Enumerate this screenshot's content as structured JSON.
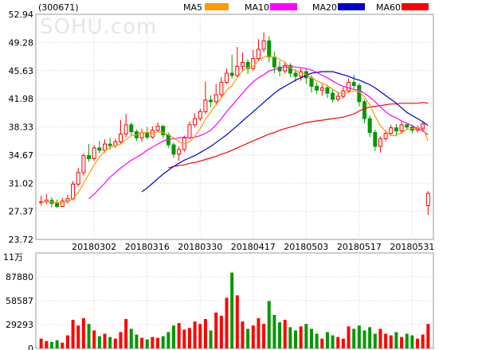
{
  "header": {
    "code": "(300671)",
    "watermark": "SOHU.com"
  },
  "chart_data": [
    {
      "type": "candlestick",
      "ylim": [
        23.72,
        52.94
      ],
      "yticks": [
        "52.94",
        "49.28",
        "45.63",
        "41.98",
        "38.33",
        "34.67",
        "31.02",
        "27.37",
        "23.72"
      ],
      "xticks": [
        "20180302",
        "20180316",
        "20180330",
        "20180417",
        "20180503",
        "20180517",
        "20180531"
      ],
      "xtick_index": [
        10,
        20,
        30,
        40,
        50,
        60,
        70
      ],
      "legend": [
        {
          "name": "MA5",
          "color": "#ff9900"
        },
        {
          "name": "MA10",
          "color": "#ff00ff"
        },
        {
          "name": "MA20",
          "color": "#0000cc"
        },
        {
          "name": "MA60",
          "color": "#ff0000"
        }
      ],
      "up_color": "#ff0000",
      "down_color": "#009900",
      "candles": [
        [
          28.5,
          28.6,
          29.4,
          28.1
        ],
        [
          28.6,
          28.8,
          29.6,
          28.3
        ],
        [
          28.8,
          28.4,
          29.2,
          27.9
        ],
        [
          28.4,
          28.0,
          28.9,
          27.8
        ],
        [
          28.0,
          28.7,
          29.1,
          27.9
        ],
        [
          28.7,
          29.0,
          29.5,
          28.4
        ],
        [
          29.0,
          30.9,
          31.3,
          28.8
        ],
        [
          30.9,
          32.4,
          33.0,
          30.6
        ],
        [
          32.4,
          34.6,
          34.9,
          32.0
        ],
        [
          34.6,
          34.2,
          36.1,
          33.8
        ],
        [
          34.2,
          35.6,
          36.0,
          33.9
        ],
        [
          35.6,
          35.3,
          36.5,
          34.9
        ],
        [
          35.3,
          36.1,
          36.7,
          35.0
        ],
        [
          36.1,
          35.9,
          36.9,
          35.4
        ],
        [
          35.9,
          36.4,
          36.8,
          35.6
        ],
        [
          36.4,
          37.4,
          39.2,
          36.1
        ],
        [
          37.4,
          38.6,
          40.0,
          37.0
        ],
        [
          38.6,
          37.7,
          38.9,
          37.2
        ],
        [
          37.7,
          36.9,
          38.0,
          36.5
        ],
        [
          36.9,
          37.6,
          38.1,
          36.4
        ],
        [
          37.6,
          37.0,
          38.3,
          36.7
        ],
        [
          37.0,
          37.9,
          38.4,
          36.8
        ],
        [
          37.9,
          38.4,
          38.9,
          37.6
        ],
        [
          38.4,
          37.3,
          38.6,
          36.9
        ],
        [
          37.3,
          36.0,
          37.6,
          35.6
        ],
        [
          36.0,
          34.8,
          36.3,
          34.3
        ],
        [
          34.8,
          35.4,
          35.8,
          33.9
        ],
        [
          35.4,
          36.9,
          37.2,
          35.1
        ],
        [
          36.9,
          38.6,
          39.0,
          36.7
        ],
        [
          38.6,
          39.4,
          40.1,
          38.3
        ],
        [
          39.4,
          40.3,
          40.7,
          39.1
        ],
        [
          40.3,
          41.8,
          44.2,
          40.0
        ],
        [
          41.8,
          41.6,
          42.4,
          40.9
        ],
        [
          41.6,
          42.5,
          43.9,
          41.3
        ],
        [
          42.5,
          44.1,
          44.8,
          42.1
        ],
        [
          44.1,
          45.3,
          45.9,
          43.9
        ],
        [
          45.3,
          45.0,
          47.7,
          44.6
        ],
        [
          45.0,
          46.2,
          48.7,
          44.8
        ],
        [
          46.2,
          46.7,
          48.0,
          45.6
        ],
        [
          46.7,
          45.9,
          47.1,
          45.2
        ],
        [
          45.9,
          47.2,
          48.3,
          45.6
        ],
        [
          47.2,
          48.4,
          49.7,
          46.9
        ],
        [
          48.4,
          49.5,
          50.6,
          48.0
        ],
        [
          49.5,
          47.4,
          50.1,
          46.7
        ],
        [
          47.4,
          46.1,
          48.1,
          45.3
        ],
        [
          46.1,
          45.6,
          46.9,
          44.9
        ],
        [
          45.6,
          46.3,
          46.8,
          45.2
        ],
        [
          46.3,
          45.3,
          46.6,
          44.8
        ],
        [
          45.3,
          44.9,
          45.8,
          44.2
        ],
        [
          44.9,
          45.5,
          46.0,
          44.3
        ],
        [
          45.5,
          44.7,
          45.9,
          43.9
        ],
        [
          44.7,
          43.6,
          45.0,
          42.8
        ],
        [
          43.6,
          43.1,
          44.1,
          42.6
        ],
        [
          43.1,
          43.4,
          43.9,
          42.4
        ],
        [
          43.4,
          42.7,
          43.8,
          42.1
        ],
        [
          42.7,
          41.9,
          43.3,
          41.5
        ],
        [
          41.9,
          42.3,
          42.9,
          41.6
        ],
        [
          42.3,
          43.0,
          43.5,
          42.0
        ],
        [
          43.0,
          44.1,
          44.6,
          42.8
        ],
        [
          44.1,
          43.7,
          45.1,
          43.3
        ],
        [
          43.7,
          41.6,
          44.0,
          41.0
        ],
        [
          41.6,
          39.4,
          41.9,
          38.8
        ],
        [
          39.4,
          37.6,
          39.8,
          37.0
        ],
        [
          37.6,
          35.8,
          38.0,
          35.2
        ],
        [
          35.8,
          36.8,
          37.1,
          35.0
        ],
        [
          36.8,
          37.5,
          37.9,
          36.5
        ],
        [
          37.5,
          38.2,
          38.6,
          37.3
        ],
        [
          38.2,
          37.8,
          38.7,
          37.1
        ],
        [
          37.8,
          38.6,
          39.0,
          37.4
        ],
        [
          38.6,
          38.3,
          38.8,
          37.9
        ],
        [
          38.3,
          37.9,
          38.6,
          37.5
        ],
        [
          37.9,
          38.1,
          38.5,
          37.6
        ],
        [
          38.1,
          38.7,
          39.0,
          37.8
        ],
        [
          28.1,
          29.7,
          30.0,
          26.9
        ]
      ],
      "ma5": [
        28.5,
        28.6,
        28.6,
        28.5,
        28.5,
        28.6,
        29.0,
        29.8,
        31.0,
        32.2,
        33.4,
        34.4,
        35.2,
        35.6,
        35.9,
        36.1,
        36.7,
        37.2,
        37.3,
        37.6,
        37.6,
        37.5,
        37.7,
        37.6,
        37.3,
        36.9,
        36.4,
        36.1,
        36.4,
        37.1,
        38.1,
        39.3,
        40.3,
        41.2,
        42.1,
        43.1,
        43.7,
        44.7,
        45.6,
        46.0,
        46.2,
        46.9,
        47.4,
        47.5,
        47.4,
        47.1,
        46.7,
        46.0,
        45.6,
        45.4,
        45.1,
        44.7,
        44.3,
        44.0,
        43.7,
        43.2,
        42.8,
        42.6,
        42.8,
        43.0,
        42.9,
        42.2,
        41.2,
        39.7,
        38.5,
        37.7,
        37.2,
        37.2,
        37.6,
        38.0,
        38.1,
        38.2,
        38.3,
        36.5
      ],
      "ma10": [
        null,
        null,
        null,
        null,
        null,
        null,
        null,
        null,
        null,
        29.0,
        29.6,
        30.3,
        31.0,
        31.8,
        32.4,
        33.0,
        33.5,
        34.0,
        34.4,
        34.8,
        35.3,
        35.7,
        36.1,
        36.5,
        36.7,
        36.8,
        36.9,
        37.0,
        36.9,
        37.0,
        37.2,
        37.5,
        37.9,
        38.6,
        39.4,
        40.3,
        41.1,
        41.9,
        42.7,
        43.5,
        44.2,
        44.7,
        45.1,
        45.6,
        45.8,
        46.0,
        46.1,
        46.1,
        46.1,
        46.0,
        45.9,
        45.7,
        45.4,
        45.0,
        44.7,
        44.3,
        43.9,
        43.6,
        43.4,
        43.2,
        43.1,
        42.7,
        42.2,
        41.6,
        40.9,
        40.3,
        39.8,
        39.5,
        39.1,
        38.8,
        38.5,
        38.1,
        37.8,
        37.3
      ],
      "ma20": [
        null,
        null,
        null,
        null,
        null,
        null,
        null,
        null,
        null,
        null,
        null,
        null,
        null,
        null,
        null,
        null,
        null,
        null,
        null,
        29.9,
        30.4,
        31.0,
        31.6,
        32.2,
        32.7,
        33.2,
        33.6,
        34.0,
        34.3,
        34.6,
        35.0,
        35.4,
        35.8,
        36.3,
        36.8,
        37.3,
        37.9,
        38.5,
        39.1,
        39.7,
        40.3,
        40.9,
        41.5,
        42.1,
        42.7,
        43.2,
        43.6,
        44.0,
        44.4,
        44.7,
        45.0,
        45.3,
        45.4,
        45.5,
        45.5,
        45.5,
        45.3,
        45.1,
        44.9,
        44.6,
        44.4,
        44.1,
        43.8,
        43.4,
        42.9,
        42.4,
        41.9,
        41.4,
        40.8,
        40.2,
        39.8,
        39.4,
        39.0,
        38.5
      ],
      "ma60": [
        null,
        null,
        null,
        null,
        null,
        null,
        null,
        null,
        null,
        null,
        null,
        null,
        null,
        null,
        null,
        null,
        null,
        null,
        null,
        null,
        null,
        null,
        null,
        null,
        33.0,
        33.2,
        33.3,
        33.4,
        33.6,
        33.7,
        33.9,
        34.1,
        34.3,
        34.5,
        34.8,
        35.0,
        35.3,
        35.6,
        35.9,
        36.2,
        36.5,
        36.8,
        37.1,
        37.4,
        37.6,
        37.9,
        38.1,
        38.3,
        38.5,
        38.7,
        38.9,
        39.0,
        39.1,
        39.2,
        39.3,
        39.4,
        39.5,
        39.6,
        39.8,
        40.0,
        40.4,
        40.7,
        40.9,
        41.0,
        41.1,
        41.2,
        41.3,
        41.3,
        41.4,
        41.4,
        41.4,
        41.4,
        41.5,
        41.4
      ]
    },
    {
      "type": "bar",
      "unit": "11万",
      "ylim": [
        0,
        117000
      ],
      "yticks": [
        "87880",
        "58587",
        "29293",
        "0"
      ],
      "values": [
        12000,
        9000,
        8000,
        10000,
        7000,
        16000,
        35000,
        28000,
        37000,
        30000,
        22000,
        15000,
        18000,
        14000,
        12000,
        20000,
        36000,
        24000,
        17000,
        13000,
        11000,
        14000,
        13000,
        15000,
        20000,
        28000,
        31000,
        23000,
        25000,
        33000,
        30000,
        36000,
        22000,
        44000,
        40000,
        62000,
        93000,
        65000,
        33000,
        24000,
        28000,
        37000,
        30000,
        58000,
        41000,
        32000,
        35000,
        26000,
        22000,
        27000,
        30000,
        24000,
        18000,
        12000,
        20000,
        16000,
        14000,
        12000,
        27000,
        24000,
        28000,
        22000,
        26000,
        18000,
        24000,
        18000,
        16000,
        20000,
        14000,
        18000,
        16000,
        12000,
        17000,
        30000
      ],
      "up": [
        true,
        true,
        false,
        false,
        true,
        true,
        true,
        true,
        true,
        false,
        true,
        false,
        true,
        false,
        true,
        true,
        true,
        false,
        false,
        true,
        false,
        true,
        true,
        false,
        false,
        false,
        true,
        true,
        true,
        true,
        true,
        true,
        false,
        true,
        true,
        true,
        false,
        true,
        true,
        false,
        true,
        true,
        true,
        false,
        false,
        false,
        true,
        false,
        false,
        true,
        false,
        false,
        false,
        true,
        false,
        false,
        true,
        true,
        true,
        false,
        false,
        false,
        false,
        false,
        true,
        true,
        true,
        false,
        true,
        false,
        false,
        true,
        true,
        true
      ]
    }
  ]
}
